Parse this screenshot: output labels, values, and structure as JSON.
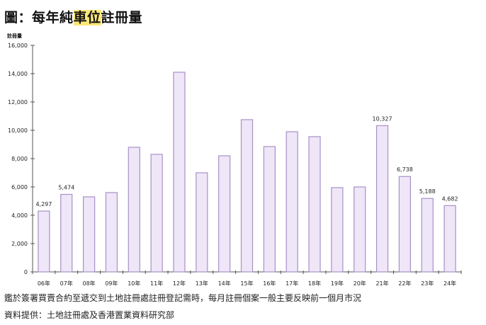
{
  "title": {
    "prefix": "圖：每年純",
    "highlight": "車位",
    "suffix": "註冊量",
    "highlight_color": "#fbe77a"
  },
  "colors": {
    "bar_fill": "#efe6f8",
    "bar_stroke": "#a791c6",
    "axis": "#555555"
  },
  "footer": {
    "note": "鑑於簽署買賣合約至遞交到土地註冊處註冊登記需時，每月註冊個案一般主要反映前一個月市況",
    "source": "資料提供：土地註冊處及香港置業資料研究部"
  },
  "chart_data": {
    "type": "bar",
    "title": "圖：每年純車位註冊量",
    "xlabel": "",
    "ylabel": "註冊量",
    "ylim": [
      0,
      16000
    ],
    "yticks": [
      0,
      2000,
      4000,
      6000,
      8000,
      10000,
      12000,
      14000,
      16000
    ],
    "ytick_labels": [
      "0",
      "2,000",
      "4,000",
      "6,000",
      "8,000",
      "10,000",
      "12,000",
      "14,000",
      "16,000"
    ],
    "grid": false,
    "legend": null,
    "categories": [
      "06年",
      "07年",
      "08年",
      "09年",
      "10年",
      "11年",
      "12年",
      "13年",
      "14年",
      "15年",
      "16年",
      "17年",
      "18年",
      "19年",
      "20年",
      "21年",
      "22年",
      "23年",
      "24年"
    ],
    "values": [
      4297,
      5474,
      5300,
      5600,
      8800,
      8300,
      14100,
      7000,
      8200,
      10750,
      8850,
      9900,
      9550,
      5950,
      6000,
      10327,
      6738,
      5188,
      4682
    ],
    "data_labels": {
      "06年": "4,297",
      "07年": "5,474",
      "21年": "10,327",
      "22年": "6,738",
      "23年": "5,188",
      "24年": "4,682"
    }
  }
}
